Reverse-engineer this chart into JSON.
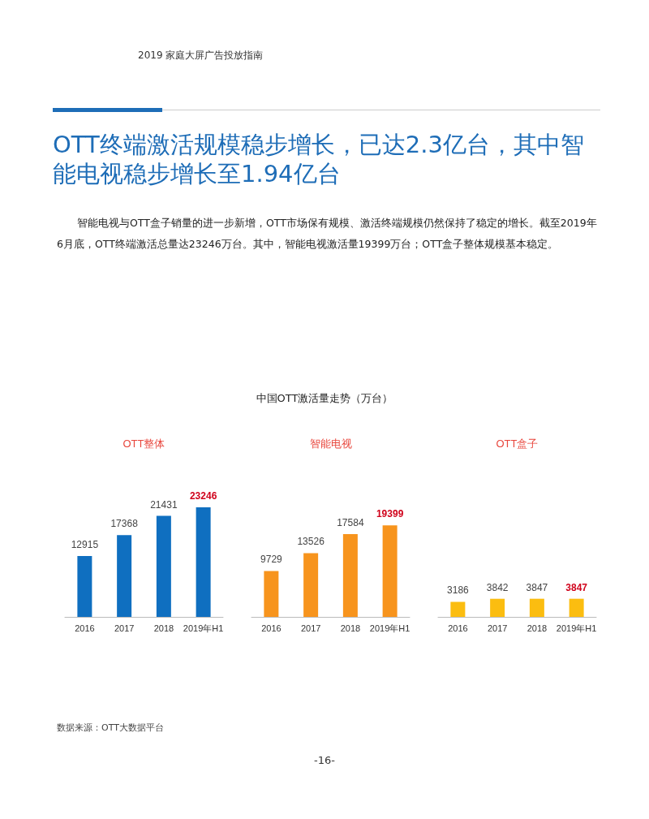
{
  "chart_data": [
    {
      "type": "other",
      "title": "OTT终端激活规模稳步增长，已达2.3亿台，其中智能电视稳步增长至1.94亿台",
      "subtitle": "智能电视与OTT盒子销量的进一步新增，OTT市场保有规模、激活终端规模仍然保持了稳定的增长。截至2019年6月底，OTT终端激活总量达23246万台。其中，智能电视激活量19399万台；OTT盒子整体规模基本稳定。",
      "annotations": [
        "2019 家庭大屏广告投放指南",
        "中国OTT激活量走势（万台）",
        "数据来源：OTT大数据平台",
        "-16-"
      ]
    },
    {
      "type": "bar",
      "title": "OTT整体",
      "categories": [
        "2016",
        "2017",
        "2018",
        "2019年H1"
      ],
      "values": [
        12915,
        17368,
        21431,
        23246
      ],
      "color": "#0f6fc0",
      "tick_labels": "x",
      "data_labels": true
    },
    {
      "type": "bar",
      "title": "智能电视",
      "categories": [
        "2016",
        "2017",
        "2018",
        "2019年H1"
      ],
      "values": [
        9729,
        13526,
        17584,
        19399
      ],
      "color": "#f7941d",
      "tick_labels": "x",
      "data_labels": true
    },
    {
      "type": "bar",
      "title": "OTT盒子",
      "categories": [
        "2016",
        "2017",
        "2018",
        "2019年H1"
      ],
      "values": [
        3186,
        3842,
        3847,
        3847
      ],
      "color": "#fbbd10",
      "tick_labels": "x",
      "data_labels": true
    }
  ]
}
